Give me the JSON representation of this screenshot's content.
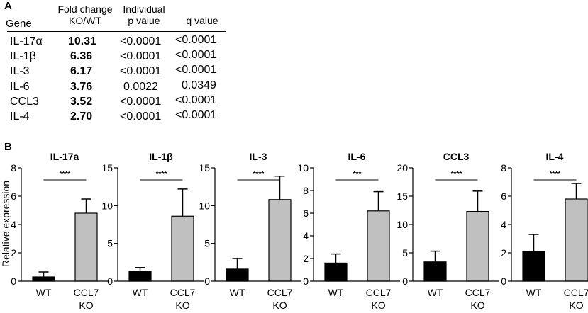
{
  "panel_a": {
    "label": "A",
    "headers": {
      "gene": "Gene",
      "fold_line1": "Fold change",
      "fold_line2": "KO/WT",
      "p_line1": "Individual",
      "p_line2": "p value",
      "q": "q value"
    },
    "rows": [
      {
        "gene": "IL-17α",
        "fold": "10.31",
        "p": "<0.0001",
        "q": "<0.0001"
      },
      {
        "gene": "IL-1β",
        "fold": "6.36",
        "p": "<0.0001",
        "q": "<0.0001"
      },
      {
        "gene": "IL-3",
        "fold": "6.17",
        "p": "<0.0001",
        "q": "<0.0001"
      },
      {
        "gene": "IL-6",
        "fold": "3.76",
        "p": "0.0022",
        "q": "0.0349"
      },
      {
        "gene": "CCL3",
        "fold": "3.52",
        "p": "<0.0001",
        "q": "<0.0001"
      },
      {
        "gene": "IL-4",
        "fold": "2.70",
        "p": "<0.0001",
        "q": "<0.0001"
      }
    ]
  },
  "panel_b": {
    "label": "B",
    "ylabel": "Relative expression",
    "colors": {
      "wt": "#000000",
      "ko": "#c0c0c0"
    }
  },
  "chart_data": [
    {
      "type": "bar",
      "title": "IL-17a",
      "categories": [
        "WT",
        "CCL7 KO"
      ],
      "values": [
        0.3,
        4.8
      ],
      "errors": [
        0.35,
        1.0
      ],
      "ylim": [
        0,
        8
      ],
      "yticks": [
        0,
        2,
        4,
        6,
        8
      ],
      "significance": "****"
    },
    {
      "type": "bar",
      "title": "IL-1β",
      "categories": [
        "WT",
        "CCL7 KO"
      ],
      "values": [
        1.3,
        8.6
      ],
      "errors": [
        0.5,
        3.6
      ],
      "ylim": [
        0,
        15
      ],
      "yticks": [
        0,
        5,
        10,
        15
      ],
      "significance": "****"
    },
    {
      "type": "bar",
      "title": "IL-3",
      "categories": [
        "WT",
        "CCL7 KO"
      ],
      "values": [
        1.6,
        10.8
      ],
      "errors": [
        1.4,
        3.1
      ],
      "ylim": [
        0,
        15
      ],
      "yticks": [
        0,
        5,
        10,
        15
      ],
      "significance": "****"
    },
    {
      "type": "bar",
      "title": "IL-6",
      "categories": [
        "WT",
        "CCL7 KO"
      ],
      "values": [
        1.6,
        6.2
      ],
      "errors": [
        0.8,
        1.7
      ],
      "ylim": [
        0,
        10
      ],
      "yticks": [
        0,
        2,
        4,
        6,
        8,
        10
      ],
      "significance": "***"
    },
    {
      "type": "bar",
      "title": "CCL3",
      "categories": [
        "WT",
        "CCL7 KO"
      ],
      "values": [
        3.4,
        12.3
      ],
      "errors": [
        1.9,
        3.6
      ],
      "ylim": [
        0,
        20
      ],
      "yticks": [
        0,
        5,
        10,
        15,
        20
      ],
      "significance": "****"
    },
    {
      "type": "bar",
      "title": "IL-4",
      "categories": [
        "WT",
        "CCL7 KO"
      ],
      "values": [
        2.1,
        5.8
      ],
      "errors": [
        1.2,
        1.1
      ],
      "ylim": [
        0,
        8
      ],
      "yticks": [
        0,
        2,
        4,
        6,
        8
      ],
      "significance": "****"
    }
  ]
}
